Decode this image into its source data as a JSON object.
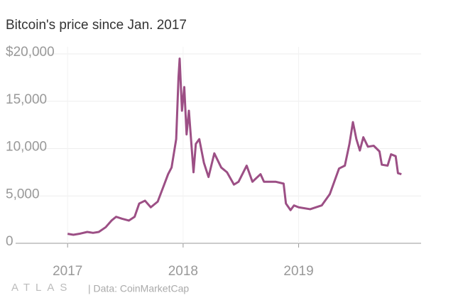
{
  "chart_data": {
    "type": "line",
    "title": "Bitcoin's price since Jan. 2017",
    "logo": "ATLAS",
    "source": "| Data: CoinMarketCap",
    "x": [
      2017.0,
      2017.05,
      2017.1,
      2017.17,
      2017.22,
      2017.27,
      2017.33,
      2017.38,
      2017.42,
      2017.47,
      2017.53,
      2017.58,
      2017.62,
      2017.67,
      2017.72,
      2017.78,
      2017.83,
      2017.87,
      2017.9,
      2017.94,
      2017.96,
      2017.97,
      2017.99,
      2018.01,
      2018.03,
      2018.05,
      2018.09,
      2018.11,
      2018.14,
      2018.18,
      2018.22,
      2018.27,
      2018.33,
      2018.38,
      2018.44,
      2018.48,
      2018.55,
      2018.6,
      2018.67,
      2018.7,
      2018.8,
      2018.87,
      2018.89,
      2018.93,
      2018.96,
      2019.0,
      2019.1,
      2019.2,
      2019.27,
      2019.35,
      2019.4,
      2019.44,
      2019.47,
      2019.5,
      2019.53,
      2019.56,
      2019.6,
      2019.65,
      2019.7,
      2019.72,
      2019.77,
      2019.8,
      2019.84,
      2019.86,
      2019.89
    ],
    "series": [
      {
        "name": "Bitcoin",
        "color": "#9c4f85",
        "values": [
          1000,
          900,
          1000,
          1200,
          1100,
          1200,
          1700,
          2400,
          2800,
          2600,
          2400,
          2800,
          4200,
          4500,
          3800,
          4400,
          6000,
          7300,
          8000,
          11000,
          17500,
          19500,
          14000,
          16500,
          11500,
          14000,
          7500,
          10500,
          11000,
          8500,
          7000,
          9500,
          8000,
          7500,
          6200,
          6500,
          8200,
          6500,
          7300,
          6500,
          6500,
          6300,
          4200,
          3500,
          4000,
          3800,
          3600,
          4000,
          5200,
          7900,
          8200,
          10500,
          12800,
          11000,
          9800,
          11200,
          10200,
          10300,
          9700,
          8300,
          8200,
          9400,
          9200,
          7400,
          7300
        ]
      }
    ],
    "xlim": [
      2016.55,
      2020.06
    ],
    "xticks": [
      2017,
      2018,
      2019
    ],
    "ylim": [
      0,
      20000
    ],
    "yticks": [
      0,
      {
        "value": 5000,
        "label": "5,000"
      },
      {
        "value": 10000,
        "label": "10,000"
      },
      {
        "value": 15000,
        "label": "15,000"
      },
      {
        "value": 20000,
        "label": "$20,000"
      }
    ],
    "grid": true
  }
}
